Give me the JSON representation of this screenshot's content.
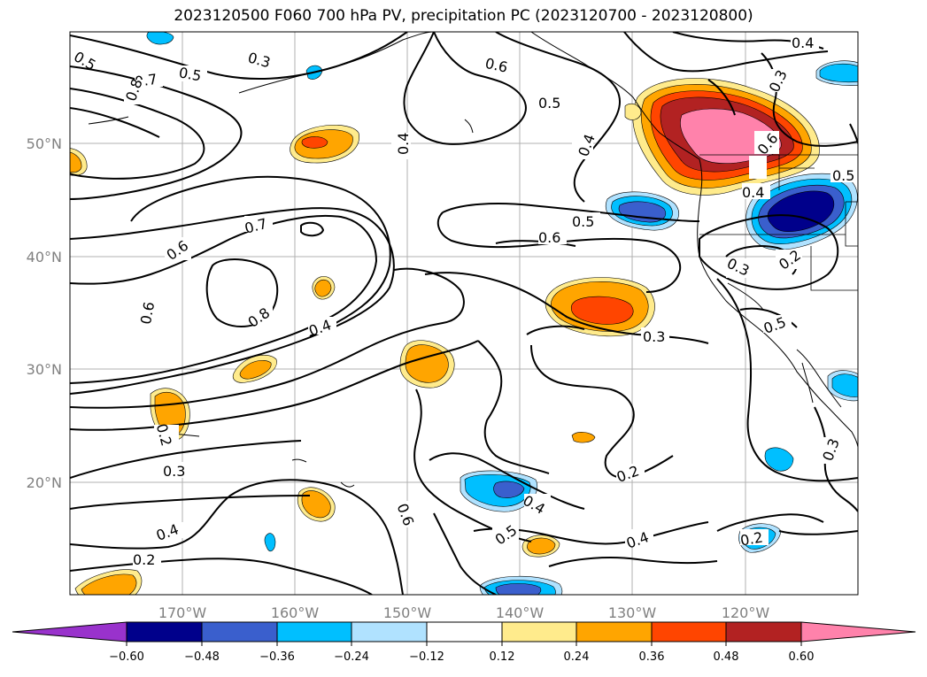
{
  "title": "2023120500 F060 700 hPa PV, precipitation PC (2023120700 - 2023120800)",
  "map": {
    "lon_labels": [
      "170°W",
      "160°W",
      "150°W",
      "140°W",
      "130°W",
      "120°W"
    ],
    "lat_labels": [
      "50°N",
      "40°N",
      "30°N",
      "20°N"
    ],
    "contour_labels": [
      "0.4",
      "0.3",
      "0.6",
      "0.7",
      "0.5",
      "0.8",
      "0.3",
      "0.5",
      "0.4",
      "0.6",
      "0.5",
      "0.4",
      "0.6",
      "0.5",
      "0.4",
      "0.7",
      "0.6",
      "0.6",
      "0.8",
      "0.4",
      "0.2",
      "0.3",
      "0.4",
      "0.2",
      "0.2",
      "0.4",
      "0.5",
      "0.4",
      "0.6",
      "0.3",
      "0.5",
      "0.2",
      "0.2",
      "0.3",
      "0.3",
      "0.5"
    ]
  },
  "colorbar": {
    "ticks": [
      "−0.60",
      "−0.48",
      "−0.36",
      "−0.24",
      "−0.12",
      "0.12",
      "0.24",
      "0.36",
      "0.48",
      "0.60"
    ],
    "colors": [
      "#9932cc",
      "#00008b",
      "#3a5fcd",
      "#00bfff",
      "#b0e2ff",
      "#ffffff",
      "#ffeb8c",
      "#ffa500",
      "#ff4500",
      "#b22222",
      "#ff82ab",
      "#ff82ab"
    ]
  },
  "fill_colors": {
    "neg_light": "#b0e2ff",
    "neg_1": "#00bfff",
    "neg_2": "#3a5fcd",
    "neg_3": "#00008b",
    "pos_light": "#ffeb8c",
    "pos_1": "#ffa500",
    "pos_2": "#ff4500",
    "pos_3": "#b22222",
    "pos_4": "#ff82ab"
  }
}
